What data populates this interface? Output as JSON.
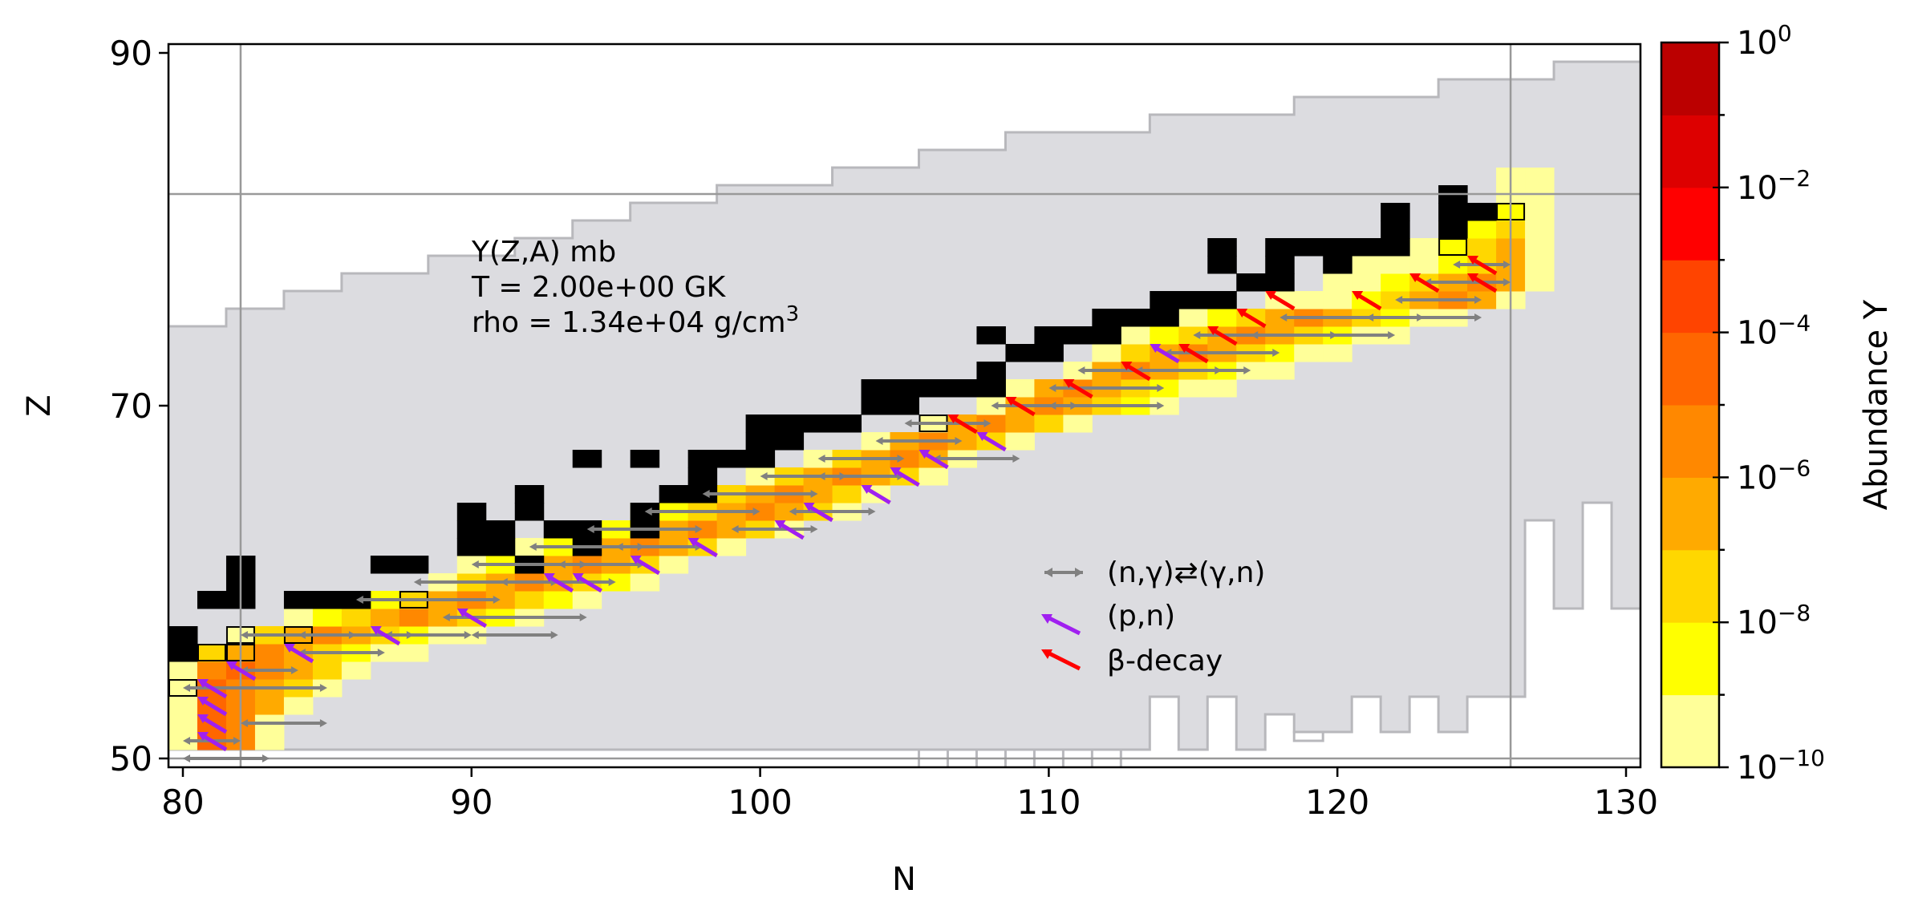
{
  "chart_data": {
    "type": "heatmap",
    "title": "",
    "xlabel": "N",
    "ylabel": "Z",
    "xlim": [
      79.5,
      130.5
    ],
    "ylim": [
      49.5,
      90.5
    ],
    "xticks": [
      80,
      90,
      100,
      110,
      120,
      130
    ],
    "yticks": [
      50,
      70,
      90
    ],
    "grid_lines": {
      "n": [
        82,
        126
      ],
      "z": [
        50,
        82
      ]
    },
    "annotation": {
      "line1": "Y(Z,A)   mb",
      "line2": "T = 2.00e+00 GK",
      "line3": "rho = 1.34e+04 g/cm",
      "line3_sup": "3"
    },
    "legend": {
      "placement": "center-right",
      "entries": [
        {
          "label": "(n,γ)⇄(γ,n)",
          "color": "#808080"
        },
        {
          "label": "(p,n)",
          "color": "#a020f0"
        },
        {
          "label": "β-decay",
          "color": "#ff0000"
        }
      ]
    },
    "colorbar": {
      "label": "Abundance Y",
      "scale": "log10",
      "range_exponents": [
        -10,
        0
      ],
      "tick_base": "10",
      "tick_exponents": [
        "0",
        "−2",
        "−4",
        "−6",
        "−8",
        "−10"
      ],
      "levels": [
        "#ffff99",
        "#ffff00",
        "#ffd700",
        "#ffaa00",
        "#ff8800",
        "#ff6600",
        "#ff4400",
        "#ff0000",
        "#dd0000",
        "#bb0000"
      ]
    },
    "band": [
      {
        "z": 51,
        "n_min": 80,
        "n_max": 83,
        "peak_n": 81,
        "peak_level": 5
      },
      {
        "z": 52,
        "n_min": 80,
        "n_max": 83,
        "peak_n": 81,
        "peak_level": 5
      },
      {
        "z": 53,
        "n_min": 80,
        "n_max": 84,
        "peak_n": 81,
        "peak_level": 5
      },
      {
        "z": 54,
        "n_min": 80,
        "n_max": 85,
        "peak_n": 81,
        "peak_level": 5
      },
      {
        "z": 55,
        "n_min": 80,
        "n_max": 86,
        "peak_n": 82,
        "peak_level": 5
      },
      {
        "z": 56,
        "n_min": 80,
        "n_max": 88,
        "peak_n": 83,
        "peak_level": 4
      },
      {
        "z": 57,
        "n_min": 82,
        "n_max": 90,
        "peak_n": 85,
        "peak_level": 4
      },
      {
        "z": 58,
        "n_min": 84,
        "n_max": 92,
        "peak_n": 88,
        "peak_level": 4
      },
      {
        "z": 59,
        "n_min": 86,
        "n_max": 94,
        "peak_n": 90,
        "peak_level": 4
      },
      {
        "z": 60,
        "n_min": 89,
        "n_max": 96,
        "peak_n": 92,
        "peak_level": 4
      },
      {
        "z": 61,
        "n_min": 90,
        "n_max": 97,
        "peak_n": 94,
        "peak_level": 4
      },
      {
        "z": 62,
        "n_min": 92,
        "n_max": 99,
        "peak_n": 96,
        "peak_level": 4
      },
      {
        "z": 63,
        "n_min": 94,
        "n_max": 101,
        "peak_n": 98,
        "peak_level": 4
      },
      {
        "z": 64,
        "n_min": 96,
        "n_max": 103,
        "peak_n": 100,
        "peak_level": 4
      },
      {
        "z": 65,
        "n_min": 98,
        "n_max": 104,
        "peak_n": 101,
        "peak_level": 4
      },
      {
        "z": 66,
        "n_min": 100,
        "n_max": 106,
        "peak_n": 103,
        "peak_level": 4
      },
      {
        "z": 67,
        "n_min": 102,
        "n_max": 107,
        "peak_n": 105,
        "peak_level": 4
      },
      {
        "z": 68,
        "n_min": 104,
        "n_max": 109,
        "peak_n": 106,
        "peak_level": 4
      },
      {
        "z": 69,
        "n_min": 106,
        "n_max": 111,
        "peak_n": 108,
        "peak_level": 4
      },
      {
        "z": 70,
        "n_min": 108,
        "n_max": 114,
        "peak_n": 110,
        "peak_level": 4
      },
      {
        "z": 71,
        "n_min": 109,
        "n_max": 116,
        "peak_n": 111,
        "peak_level": 4
      },
      {
        "z": 72,
        "n_min": 111,
        "n_max": 118,
        "peak_n": 113,
        "peak_level": 4
      },
      {
        "z": 73,
        "n_min": 112,
        "n_max": 120,
        "peak_n": 115,
        "peak_level": 4
      },
      {
        "z": 74,
        "n_min": 113,
        "n_max": 122,
        "peak_n": 117,
        "peak_level": 4
      },
      {
        "z": 75,
        "n_min": 115,
        "n_max": 124,
        "peak_n": 119,
        "peak_level": 4
      },
      {
        "z": 76,
        "n_min": 118,
        "n_max": 126,
        "peak_n": 124,
        "peak_level": 4
      },
      {
        "z": 77,
        "n_min": 120,
        "n_max": 127,
        "peak_n": 125,
        "peak_level": 4
      },
      {
        "z": 78,
        "n_min": 121,
        "n_max": 127,
        "peak_n": 126,
        "peak_level": 3
      },
      {
        "z": 79,
        "n_min": 123,
        "n_max": 127,
        "peak_n": 126,
        "peak_level": 3
      },
      {
        "z": 80,
        "n_min": 124,
        "n_max": 127,
        "peak_n": 126,
        "peak_level": 2
      },
      {
        "z": 81,
        "n_min": 125,
        "n_max": 127,
        "peak_n": 126,
        "peak_level": 1
      },
      {
        "z": 82,
        "n_min": 126,
        "n_max": 127,
        "peak_n": 126,
        "peak_level": 0
      },
      {
        "z": 83,
        "n_min": 126,
        "n_max": 127,
        "peak_n": 126,
        "peak_level": 0
      }
    ],
    "stable_isotopes": [
      [
        80,
        57
      ],
      [
        80,
        56
      ],
      [
        81,
        59
      ],
      [
        82,
        59
      ],
      [
        82,
        60
      ],
      [
        82,
        61
      ],
      [
        84,
        59
      ],
      [
        85,
        59
      ],
      [
        86,
        59
      ],
      [
        87,
        61
      ],
      [
        88,
        61
      ],
      [
        90,
        62
      ],
      [
        90,
        63
      ],
      [
        90,
        64
      ],
      [
        91,
        62
      ],
      [
        91,
        63
      ],
      [
        92,
        61
      ],
      [
        92,
        64
      ],
      [
        92,
        65
      ],
      [
        93,
        63
      ],
      [
        94,
        63
      ],
      [
        94,
        67
      ],
      [
        94,
        62
      ],
      [
        96,
        63
      ],
      [
        96,
        67
      ],
      [
        96,
        64
      ],
      [
        97,
        65
      ],
      [
        98,
        65
      ],
      [
        98,
        66
      ],
      [
        98,
        67
      ],
      [
        99,
        67
      ],
      [
        100,
        67
      ],
      [
        100,
        68
      ],
      [
        100,
        69
      ],
      [
        101,
        68
      ],
      [
        101,
        69
      ],
      [
        102,
        69
      ],
      [
        103,
        69
      ],
      [
        104,
        70
      ],
      [
        104,
        71
      ],
      [
        105,
        70
      ],
      [
        105,
        71
      ],
      [
        106,
        71
      ],
      [
        107,
        71
      ],
      [
        108,
        71
      ],
      [
        108,
        72
      ],
      [
        108,
        74
      ],
      [
        109,
        73
      ],
      [
        110,
        73
      ],
      [
        110,
        74
      ],
      [
        111,
        74
      ],
      [
        112,
        74
      ],
      [
        112,
        75
      ],
      [
        113,
        75
      ],
      [
        114,
        75
      ],
      [
        114,
        76
      ],
      [
        115,
        76
      ],
      [
        116,
        76
      ],
      [
        116,
        79
      ],
      [
        116,
        78
      ],
      [
        117,
        77
      ],
      [
        118,
        77
      ],
      [
        118,
        78
      ],
      [
        118,
        79
      ],
      [
        119,
        79
      ],
      [
        120,
        79
      ],
      [
        120,
        78
      ],
      [
        121,
        79
      ],
      [
        122,
        79
      ],
      [
        122,
        80
      ],
      [
        122,
        81
      ],
      [
        124,
        80
      ],
      [
        124,
        81
      ],
      [
        124,
        82
      ],
      [
        125,
        81
      ]
    ],
    "boxed": [
      [
        80,
        54
      ],
      [
        80,
        56
      ],
      [
        81,
        56
      ],
      [
        82,
        56
      ],
      [
        82,
        57
      ],
      [
        84,
        57
      ],
      [
        88,
        59
      ],
      [
        106,
        69
      ],
      [
        124,
        79
      ],
      [
        126,
        81
      ]
    ],
    "ng_arrows": [
      [
        80,
        50,
        3
      ],
      [
        80,
        51,
        2
      ],
      [
        82,
        52,
        3
      ],
      [
        80,
        54,
        5
      ],
      [
        82,
        55,
        2
      ],
      [
        82,
        57,
        4
      ],
      [
        84,
        56,
        3
      ],
      [
        84,
        57,
        4
      ],
      [
        87,
        57,
        3
      ],
      [
        90,
        57,
        3
      ],
      [
        86,
        59,
        5
      ],
      [
        89,
        58,
        5
      ],
      [
        88,
        60,
        5
      ],
      [
        91,
        60,
        4
      ],
      [
        90,
        61,
        4
      ],
      [
        93,
        61,
        3
      ],
      [
        92,
        62,
        4
      ],
      [
        95,
        62,
        3
      ],
      [
        94,
        63,
        4
      ],
      [
        96,
        64,
        4
      ],
      [
        99,
        63,
        3
      ],
      [
        98,
        65,
        4
      ],
      [
        101,
        64,
        3
      ],
      [
        100,
        66,
        3
      ],
      [
        102,
        66,
        3
      ],
      [
        102,
        67,
        3
      ],
      [
        104,
        68,
        3
      ],
      [
        106,
        67,
        3
      ],
      [
        105,
        69,
        3
      ],
      [
        108,
        70,
        3
      ],
      [
        110,
        70,
        4
      ],
      [
        110,
        71,
        4
      ],
      [
        111,
        72,
        5
      ],
      [
        113,
        72,
        4
      ],
      [
        114,
        73,
        4
      ],
      [
        115,
        74,
        5
      ],
      [
        117,
        74,
        5
      ],
      [
        118,
        75,
        5
      ],
      [
        121,
        75,
        4
      ],
      [
        122,
        76,
        3
      ],
      [
        123,
        77,
        3
      ],
      [
        124,
        78,
        2
      ]
    ],
    "pn_arrows": [
      [
        81,
        51
      ],
      [
        81,
        52
      ],
      [
        81,
        53
      ],
      [
        81,
        54
      ],
      [
        82,
        55
      ],
      [
        84,
        56
      ],
      [
        87,
        57
      ],
      [
        90,
        58
      ],
      [
        93,
        60
      ],
      [
        94,
        60
      ],
      [
        96,
        61
      ],
      [
        98,
        62
      ],
      [
        101,
        63
      ],
      [
        102,
        64
      ],
      [
        104,
        65
      ],
      [
        105,
        66
      ],
      [
        106,
        67
      ],
      [
        108,
        68
      ],
      [
        114,
        73
      ]
    ],
    "beta_arrows": [
      [
        107,
        69
      ],
      [
        109,
        70
      ],
      [
        111,
        71
      ],
      [
        113,
        72
      ],
      [
        115,
        73
      ],
      [
        116,
        74
      ],
      [
        117,
        75
      ],
      [
        121,
        76
      ],
      [
        123,
        77
      ],
      [
        125,
        77
      ],
      [
        125,
        78
      ],
      [
        118,
        76
      ]
    ]
  }
}
